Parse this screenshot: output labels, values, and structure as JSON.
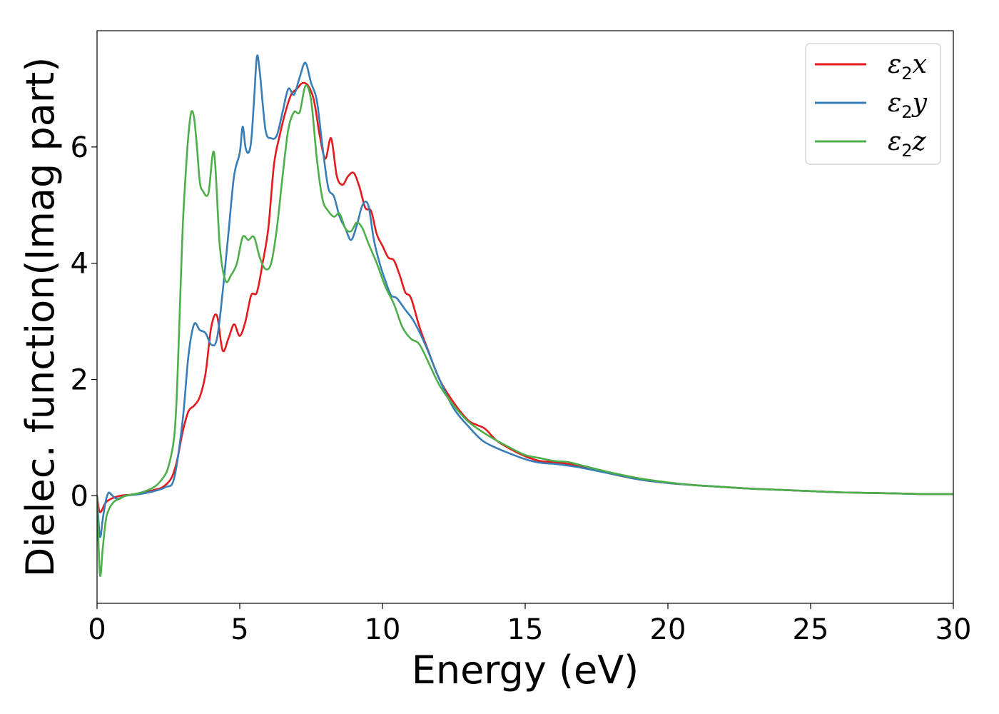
{
  "chart_data": {
    "type": "line",
    "title": "",
    "xlabel": "Energy (eV)",
    "ylabel": "Dielec. function(Imag part)",
    "xlim": [
      0,
      30
    ],
    "ylim": [
      -1.85,
      8.0
    ],
    "xticks": [
      0,
      5,
      10,
      15,
      20,
      25,
      30
    ],
    "yticks": [
      0,
      2,
      4,
      6
    ],
    "grid": false,
    "legend_position": "top-right",
    "series": [
      {
        "name": "ε₂x",
        "legend": {
          "base": "ε",
          "sub": "2",
          "tail": "x"
        },
        "color": "#e41a1c",
        "x": [
          0,
          0.1,
          0.3,
          0.5,
          0.8,
          1.2,
          1.6,
          2.0,
          2.3,
          2.6,
          2.8,
          3.0,
          3.2,
          3.4,
          3.6,
          3.8,
          4.0,
          4.2,
          4.4,
          4.6,
          4.8,
          5.0,
          5.2,
          5.4,
          5.6,
          5.8,
          6.0,
          6.2,
          6.4,
          6.6,
          6.8,
          7.0,
          7.2,
          7.4,
          7.6,
          7.8,
          8.0,
          8.2,
          8.4,
          8.6,
          8.8,
          9.0,
          9.2,
          9.4,
          9.6,
          9.8,
          10.0,
          10.2,
          10.4,
          10.6,
          10.8,
          11.0,
          11.3,
          11.6,
          12.0,
          12.5,
          13.0,
          13.3,
          13.6,
          14.0,
          14.5,
          15.0,
          15.5,
          16.0,
          16.5,
          17.0,
          18.0,
          19.0,
          20.0,
          21.0,
          22.0,
          23.0,
          24.0,
          25.0,
          26.0,
          27.0,
          28.0,
          29.0,
          30.0
        ],
        "values": [
          0,
          -0.28,
          -0.12,
          -0.05,
          0,
          0.02,
          0.05,
          0.1,
          0.15,
          0.3,
          0.6,
          1.1,
          1.45,
          1.55,
          1.7,
          2.1,
          2.9,
          3.1,
          2.5,
          2.7,
          2.95,
          2.75,
          3.0,
          3.45,
          3.5,
          4.0,
          4.6,
          5.7,
          6.2,
          6.6,
          6.9,
          7.0,
          7.1,
          7.05,
          6.8,
          6.2,
          5.8,
          6.15,
          5.5,
          5.35,
          5.5,
          5.55,
          5.3,
          4.95,
          4.9,
          4.5,
          4.3,
          4.1,
          4.05,
          3.8,
          3.5,
          3.4,
          2.9,
          2.5,
          2.0,
          1.6,
          1.3,
          1.22,
          1.15,
          0.95,
          0.8,
          0.68,
          0.6,
          0.58,
          0.55,
          0.5,
          0.38,
          0.28,
          0.22,
          0.18,
          0.15,
          0.12,
          0.1,
          0.08,
          0.06,
          0.05,
          0.04,
          0.03,
          0.03
        ]
      },
      {
        "name": "ε₂y",
        "legend": {
          "base": "ε",
          "sub": "2",
          "tail": "y"
        },
        "color": "#377eb8",
        "x": [
          0,
          0.1,
          0.2,
          0.3,
          0.4,
          0.5,
          0.7,
          1.0,
          1.5,
          2.0,
          2.4,
          2.7,
          3.0,
          3.2,
          3.4,
          3.6,
          3.8,
          4.0,
          4.2,
          4.4,
          4.6,
          4.8,
          5.0,
          5.1,
          5.2,
          5.3,
          5.4,
          5.5,
          5.6,
          5.7,
          5.9,
          6.1,
          6.3,
          6.5,
          6.7,
          6.9,
          7.1,
          7.3,
          7.5,
          7.7,
          7.9,
          8.1,
          8.3,
          8.5,
          8.7,
          8.9,
          9.1,
          9.3,
          9.5,
          9.7,
          9.9,
          10.1,
          10.3,
          10.5,
          10.8,
          11.1,
          11.5,
          12.0,
          12.5,
          13.0,
          13.5,
          14.0,
          14.5,
          15.0,
          15.5,
          16.0,
          16.5,
          17.0,
          18.0,
          19.0,
          20.0,
          21.0,
          22.0,
          23.0,
          24.0,
          25.0,
          26.0,
          27.0,
          28.0,
          29.0,
          30.0
        ],
        "values": [
          0,
          -0.7,
          -0.4,
          -0.1,
          0.05,
          0.02,
          -0.05,
          0,
          0.03,
          0.08,
          0.15,
          0.3,
          1.3,
          2.4,
          2.95,
          2.85,
          2.8,
          2.6,
          2.7,
          3.5,
          4.5,
          5.5,
          5.9,
          6.35,
          6.0,
          5.9,
          6.1,
          6.8,
          7.55,
          7.3,
          6.3,
          6.15,
          6.2,
          6.6,
          7.0,
          6.9,
          7.2,
          7.45,
          7.1,
          6.8,
          6.0,
          5.3,
          5.15,
          4.8,
          4.6,
          4.4,
          4.65,
          5.0,
          5.0,
          4.4,
          4.0,
          3.7,
          3.45,
          3.4,
          3.2,
          3.0,
          2.6,
          2.0,
          1.5,
          1.2,
          0.95,
          0.82,
          0.72,
          0.63,
          0.57,
          0.55,
          0.52,
          0.48,
          0.38,
          0.28,
          0.22,
          0.18,
          0.15,
          0.12,
          0.1,
          0.08,
          0.06,
          0.05,
          0.04,
          0.03,
          0.03
        ]
      },
      {
        "name": "ε₂z",
        "legend": {
          "base": "ε",
          "sub": "2",
          "tail": "z"
        },
        "color": "#4daf4a",
        "x": [
          0,
          0.1,
          0.2,
          0.3,
          0.4,
          0.6,
          0.8,
          1.0,
          1.5,
          2.0,
          2.3,
          2.5,
          2.7,
          2.8,
          2.9,
          3.0,
          3.1,
          3.2,
          3.3,
          3.4,
          3.5,
          3.6,
          3.7,
          3.9,
          4.1,
          4.3,
          4.5,
          4.7,
          4.9,
          5.1,
          5.3,
          5.5,
          5.7,
          5.9,
          6.1,
          6.3,
          6.5,
          6.7,
          6.9,
          7.1,
          7.3,
          7.5,
          7.7,
          7.9,
          8.1,
          8.3,
          8.5,
          8.7,
          8.9,
          9.1,
          9.3,
          9.5,
          9.8,
          10.1,
          10.4,
          10.7,
          11.0,
          11.3,
          11.7,
          12.0,
          12.5,
          13.0,
          13.5,
          14.0,
          14.5,
          15.0,
          15.5,
          16.0,
          16.5,
          17.0,
          18.0,
          19.0,
          20.0,
          21.0,
          22.0,
          23.0,
          24.0,
          25.0,
          26.0,
          27.0,
          28.0,
          29.0,
          30.0
        ],
        "values": [
          0,
          -1.35,
          -0.9,
          -0.45,
          -0.25,
          -0.1,
          -0.05,
          0,
          0.05,
          0.15,
          0.3,
          0.5,
          1.0,
          1.8,
          3.2,
          4.6,
          5.5,
          6.2,
          6.6,
          6.5,
          6.0,
          5.4,
          5.25,
          5.2,
          5.9,
          4.3,
          3.7,
          3.8,
          4.0,
          4.45,
          4.4,
          4.45,
          4.1,
          3.9,
          4.0,
          4.6,
          5.5,
          6.3,
          6.6,
          6.6,
          7.05,
          6.8,
          5.8,
          5.1,
          4.9,
          4.8,
          4.85,
          4.6,
          4.55,
          4.7,
          4.6,
          4.35,
          4.0,
          3.6,
          3.3,
          2.9,
          2.7,
          2.6,
          2.2,
          1.9,
          1.55,
          1.28,
          1.1,
          0.95,
          0.82,
          0.7,
          0.65,
          0.6,
          0.58,
          0.52,
          0.4,
          0.3,
          0.23,
          0.18,
          0.15,
          0.12,
          0.1,
          0.08,
          0.06,
          0.05,
          0.04,
          0.03,
          0.03
        ]
      }
    ]
  }
}
